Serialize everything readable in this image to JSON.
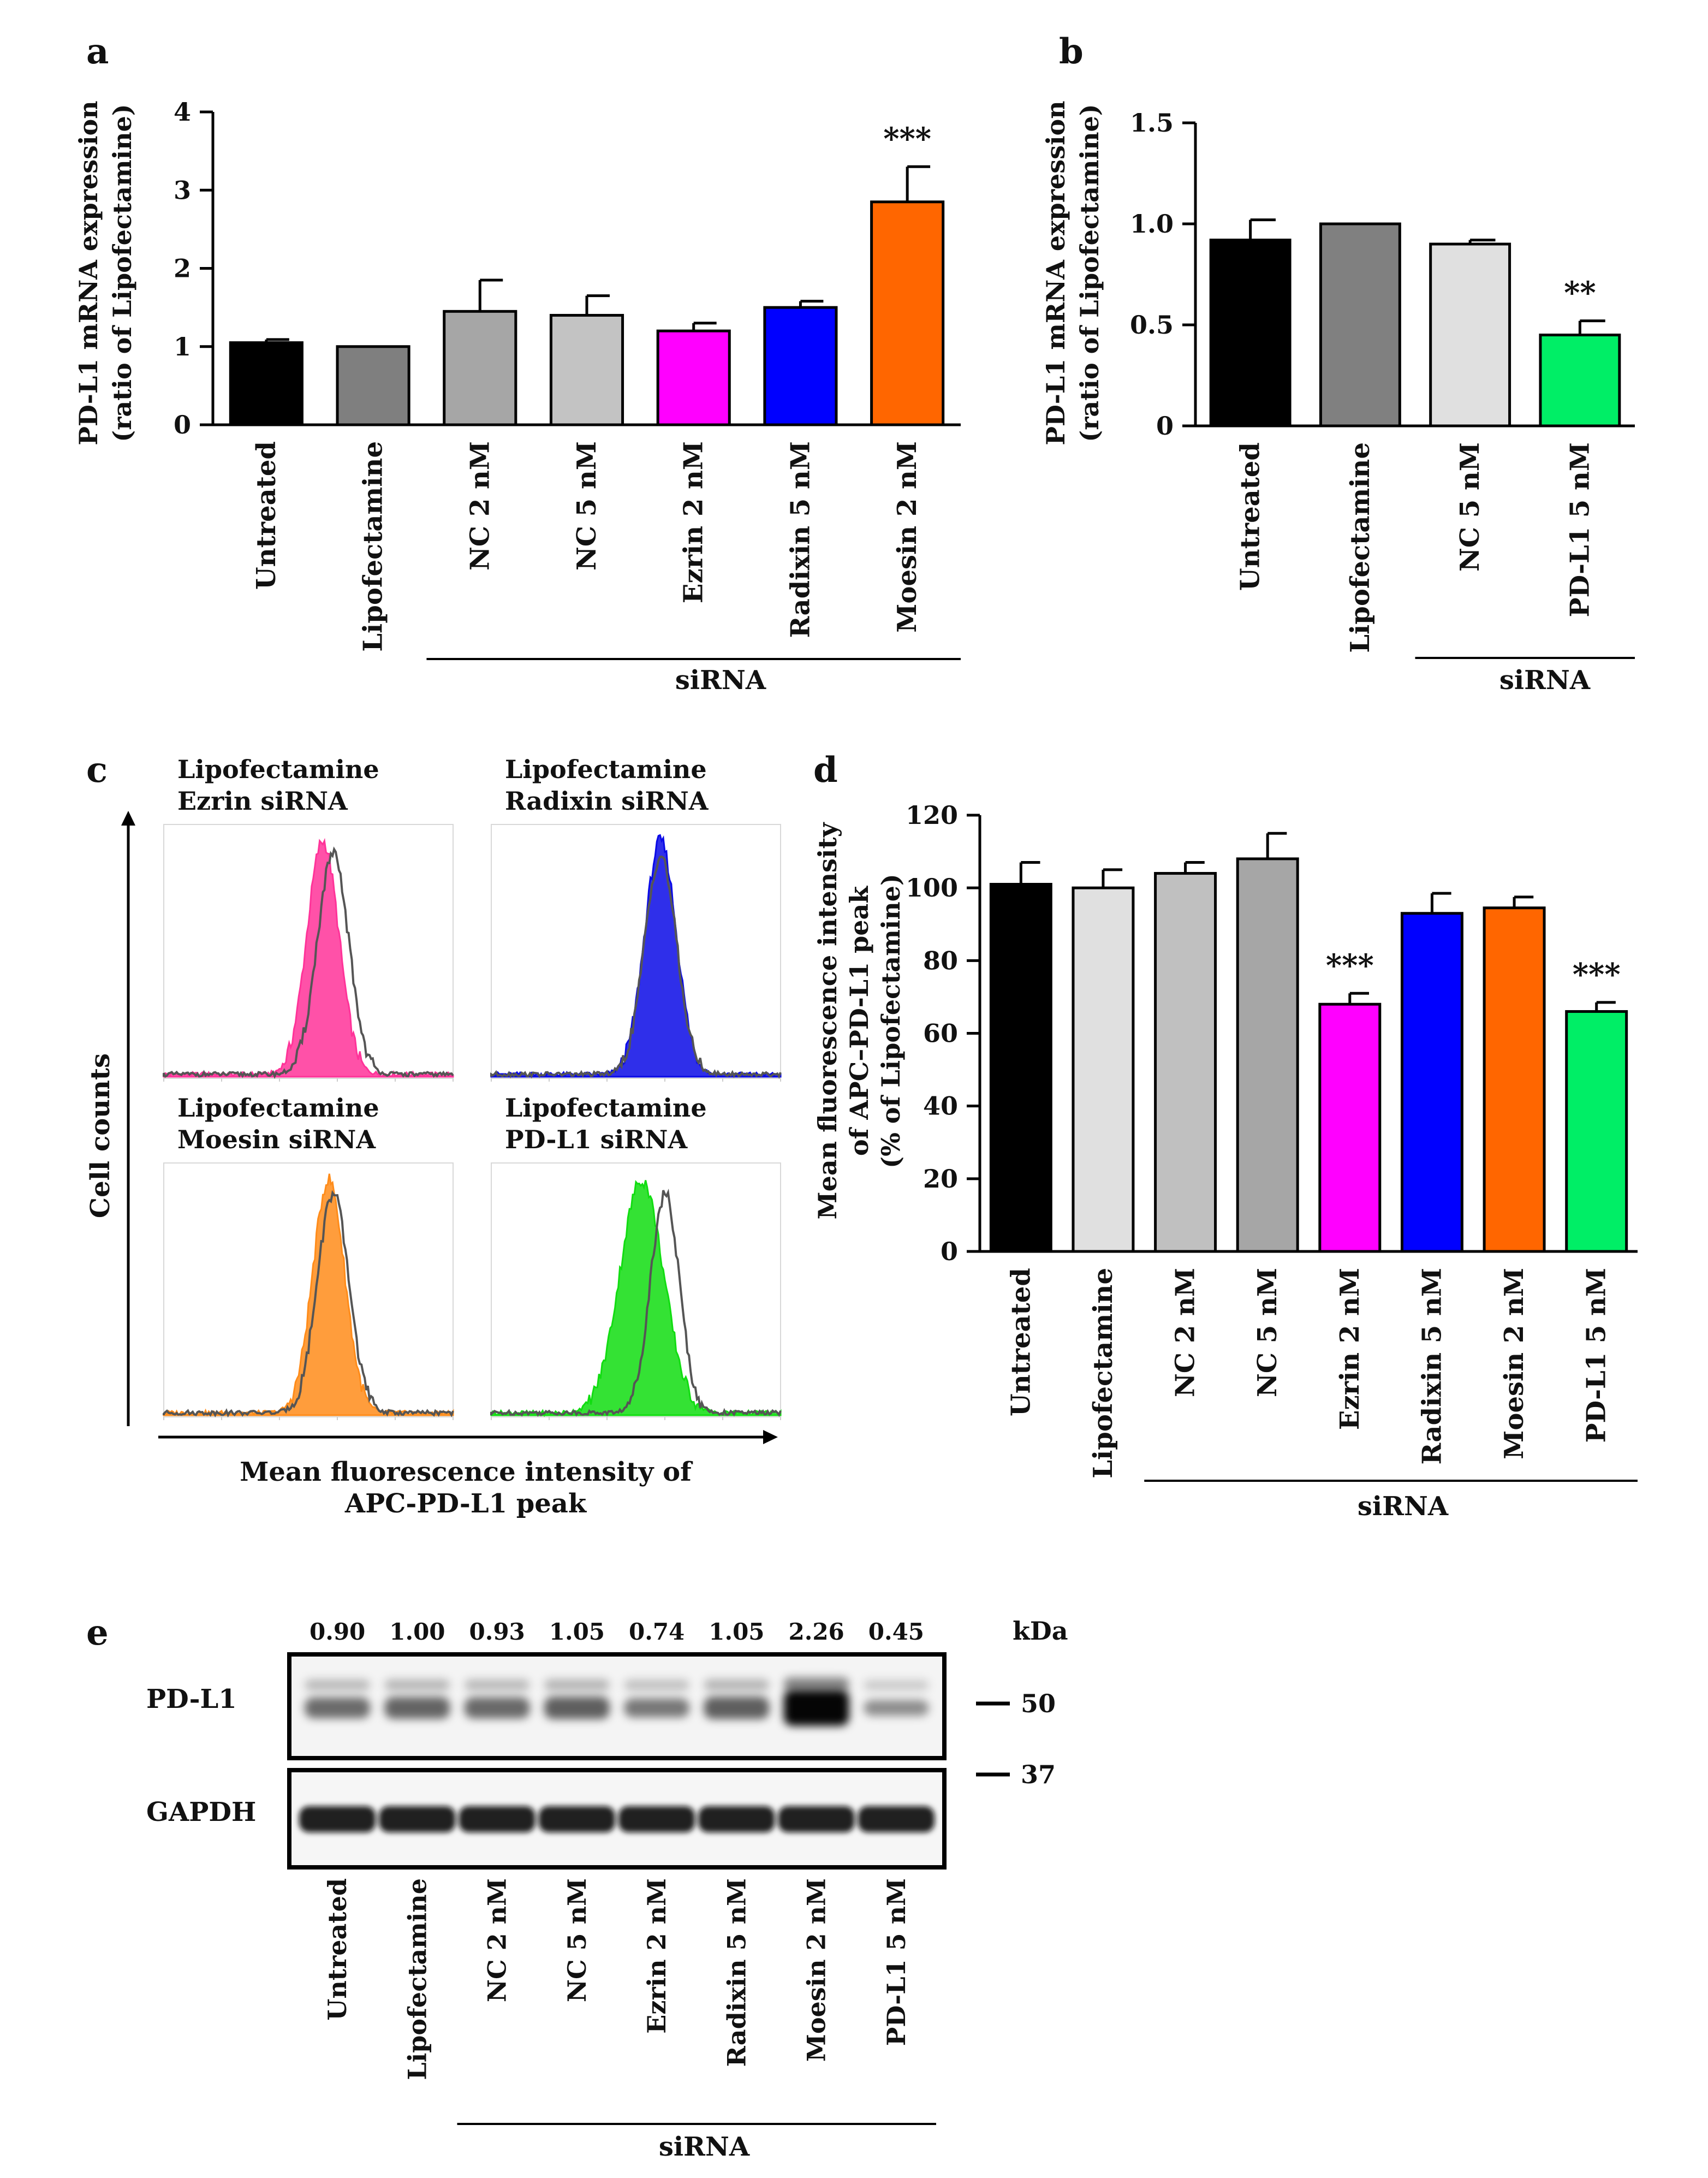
{
  "panel_labels": {
    "a": "a",
    "b": "b",
    "c": "c",
    "d": "d",
    "e": "e"
  },
  "chart_data": [
    {
      "id": "a",
      "type": "bar",
      "categories": [
        "Untreated",
        "Lipofectamine",
        "NC 2 nM",
        "NC 5 nM",
        "Ezrin 2 nM",
        "Radixin 5 nM",
        "Moesin 2 nM"
      ],
      "values": [
        1.05,
        1.0,
        1.45,
        1.4,
        1.2,
        1.5,
        2.85
      ],
      "errors": [
        0.04,
        0.0,
        0.4,
        0.25,
        0.1,
        0.08,
        0.45
      ],
      "colors": [
        "#000000",
        "#7f7f7f",
        "#a6a6a6",
        "#c3c3c3",
        "#ff00ff",
        "#0000ff",
        "#ff6600"
      ],
      "significance": [
        "",
        "",
        "",
        "",
        "",
        "",
        "***"
      ],
      "ylabel_lines": [
        "PD-L1 mRNA expression",
        "(ratio of Lipofectamine)"
      ],
      "yticks": [
        "0",
        "1",
        "2",
        "3",
        "4"
      ],
      "ylim": [
        0,
        4
      ],
      "group_label": "siRNA",
      "group_range": [
        2,
        6
      ]
    },
    {
      "id": "b",
      "type": "bar",
      "categories": [
        "Untreated",
        "Lipofectamine",
        "NC 5 nM",
        "PD-L1 5 nM"
      ],
      "values": [
        0.92,
        1.0,
        0.9,
        0.45
      ],
      "errors": [
        0.1,
        0.0,
        0.02,
        0.07
      ],
      "colors": [
        "#000000",
        "#808080",
        "#e0e0e0",
        "#00ee66"
      ],
      "significance": [
        "",
        "",
        "",
        "**"
      ],
      "ylabel_lines": [
        "PD-L1 mRNA expression",
        "(ratio of Lipofectamine)"
      ],
      "yticks": [
        "0",
        "0.5",
        "1.0",
        "1.5"
      ],
      "ylim": [
        0,
        1.5
      ],
      "group_label": "siRNA",
      "group_range": [
        2,
        3
      ]
    },
    {
      "id": "c",
      "type": "histogram-overlay",
      "ylabel": "Cell counts",
      "xlabel_lines": [
        "Mean fluorescence intensity of",
        "APC-PD-L1 peak"
      ],
      "panels": [
        {
          "ref_label": "Lipofectamine",
          "sample_label": "Ezrin siRNA",
          "sample_color": "#ff3399",
          "ref_mu": 0.585,
          "ref_sigma": 0.055,
          "sample_mu": 0.55,
          "sample_sigma": 0.055
        },
        {
          "ref_label": "Lipofectamine",
          "sample_label": "Radixin siRNA",
          "sample_color": "#0a0ae6",
          "ref_mu": 0.585,
          "ref_sigma": 0.055,
          "sample_mu": 0.585,
          "sample_sigma": 0.055
        },
        {
          "ref_label": "Lipofectamine",
          "sample_label": "Moesin siRNA",
          "sample_color": "#ff8c1a",
          "ref_mu": 0.585,
          "ref_sigma": 0.055,
          "sample_mu": 0.57,
          "sample_sigma": 0.055
        },
        {
          "ref_label": "Lipofectamine",
          "sample_label": "PD-L1 siRNA",
          "sample_color": "#11dd11",
          "ref_mu": 0.6,
          "ref_sigma": 0.05,
          "sample_mu": 0.52,
          "sample_sigma": 0.075
        }
      ],
      "ref_color": "#555555"
    },
    {
      "id": "d",
      "type": "bar",
      "categories": [
        "Untreated",
        "Lipofectamine",
        "NC  2 nM",
        "NC 5 nM",
        "Ezrin 2 nM",
        "Radixin 5 nM",
        "Moesin 2 nM",
        "PD-L1 5 nM"
      ],
      "values": [
        101,
        100,
        104,
        108,
        68,
        93,
        94.5,
        66
      ],
      "errors": [
        6,
        5,
        3,
        7,
        3,
        5.5,
        3,
        2.5
      ],
      "colors": [
        "#000000",
        "#e0e0e0",
        "#c0c0c0",
        "#a6a6a6",
        "#ff00ff",
        "#0000ff",
        "#ff6600",
        "#00ee66"
      ],
      "significance": [
        "",
        "",
        "",
        "",
        "***",
        "",
        "",
        "***"
      ],
      "ylabel_lines": [
        "Mean fluorescence intensity",
        "of APC–PD-L1 peak",
        "(% of Lipofectamine)"
      ],
      "yticks": [
        "0",
        "20",
        "40",
        "60",
        "80",
        "100",
        "120"
      ],
      "ylim": [
        0,
        120
      ],
      "group_label": "siRNA",
      "group_range": [
        2,
        7
      ]
    },
    {
      "id": "e",
      "type": "western-blot",
      "kda_label": "kDa",
      "ratios": [
        "0.90",
        "1.00",
        "0.93",
        "1.05",
        "0.74",
        "1.05",
        "2.26",
        "0.45"
      ],
      "ratio_values": [
        0.9,
        1.0,
        0.93,
        1.05,
        0.74,
        1.05,
        2.26,
        0.45
      ],
      "bands": [
        "PD-L1",
        "GAPDH"
      ],
      "markers": [
        "50",
        "37"
      ],
      "lanes": [
        "Untreated",
        "Lipofectamine",
        "NC  2 nM",
        "NC 5 nM",
        "Ezrin 2 nM",
        "Radixin 5 nM",
        "Moesin 2 nM",
        "PD-L1 5 nM"
      ],
      "group_label": "siRNA",
      "group_range": [
        2,
        7
      ]
    }
  ]
}
